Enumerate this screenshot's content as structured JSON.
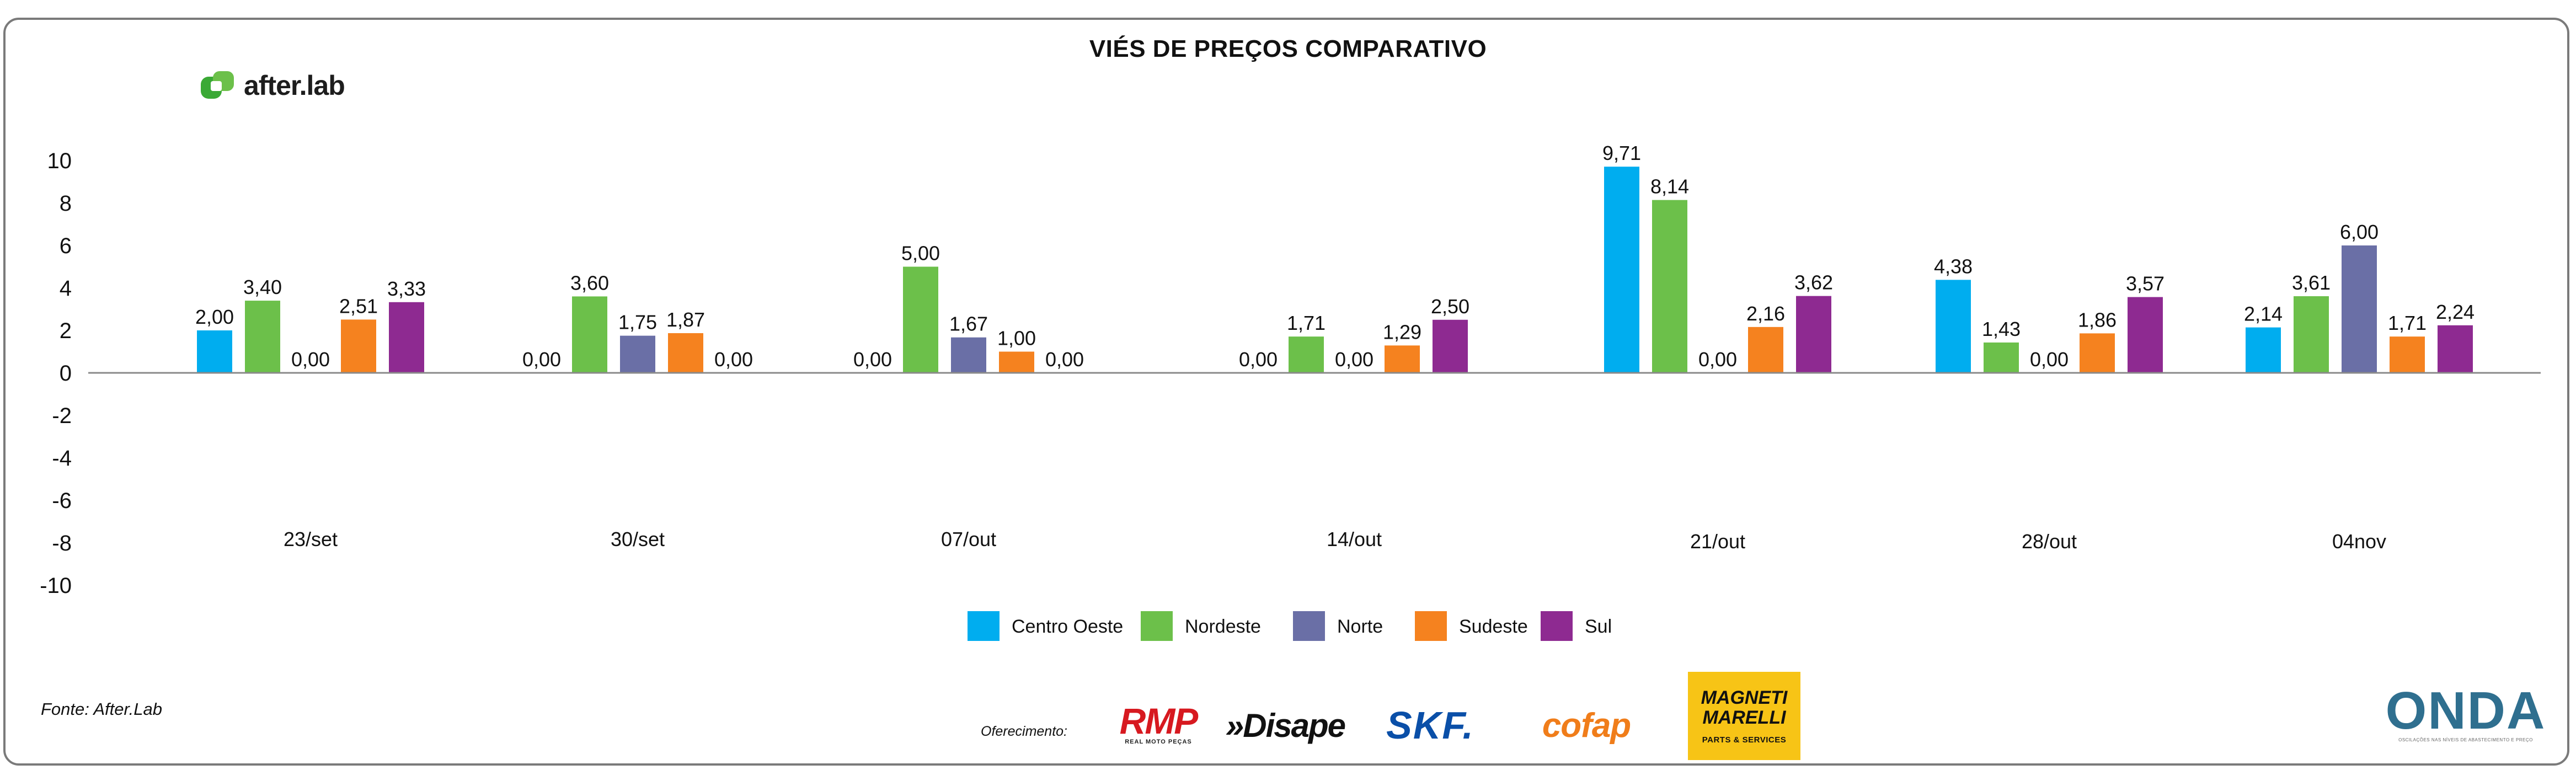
{
  "chart_data": {
    "type": "bar",
    "title": "VIÉS DE PREÇOS COMPARATIVO",
    "categories": [
      "23/set",
      "30/set",
      "07/out",
      "14/out",
      "21/out",
      "28/out",
      "04nov"
    ],
    "series": [
      {
        "name": "Centro Oeste",
        "color": "#00adef",
        "values": [
          2.0,
          0.0,
          0.0,
          0.0,
          9.71,
          4.38,
          2.14
        ],
        "labels": [
          "2,00",
          "0,00",
          "0,00",
          "0,00",
          "9,71",
          "4,38",
          "2,14"
        ]
      },
      {
        "name": "Nordeste",
        "color": "#6cc04a",
        "values": [
          3.4,
          3.6,
          5.0,
          1.71,
          8.14,
          1.43,
          3.61
        ],
        "labels": [
          "3,40",
          "3,60",
          "5,00",
          "1,71",
          "8,14",
          "1,43",
          "3,61"
        ]
      },
      {
        "name": "Norte",
        "color": "#6a6fa6",
        "values": [
          0.0,
          1.75,
          1.67,
          0.0,
          0.0,
          0.0,
          6.0
        ],
        "labels": [
          "0,00",
          "1,75",
          "1,67",
          "0,00",
          "0,00",
          "0,00",
          "6,00"
        ]
      },
      {
        "name": "Sudeste",
        "color": "#f5821f",
        "values": [
          2.51,
          1.87,
          1.0,
          1.29,
          2.16,
          1.86,
          1.71
        ],
        "labels": [
          "2,51",
          "1,87",
          "1,00",
          "1,29",
          "2,16",
          "1,86",
          "1,71"
        ]
      },
      {
        "name": "Sul",
        "color": "#8e2a91",
        "values": [
          3.33,
          0.0,
          0.0,
          2.5,
          3.62,
          3.57,
          2.24
        ],
        "labels": [
          "3,33",
          "0,00",
          "0,00",
          "2,50",
          "3,62",
          "3,57",
          "2,24"
        ]
      }
    ],
    "yticks": [
      10,
      8,
      6,
      4,
      2,
      0,
      -2,
      -4,
      -6,
      -8,
      -10
    ],
    "ylim": [
      -10,
      10
    ],
    "xlabel": "",
    "ylabel": "",
    "legend_position": "bottom-center"
  },
  "header": {
    "logo_text": "after.lab"
  },
  "footer": {
    "source": "Fonte: After.Lab",
    "offer_label": "Oferecimento:",
    "sponsors": {
      "rmp": "RMP",
      "rmp_tagline": "REAL MOTO PEÇAS",
      "disape": "»Disape",
      "skf": "SKF.",
      "cofap": "cofap",
      "magneti": "MAGNETI MARELLI",
      "magneti_sub": "PARTS & SERVICES",
      "onda": "ONDA",
      "onda_sub": "OSCILAÇÕES NAS NÍVEIS DE ABASTECIMENTO E PREÇO"
    }
  }
}
